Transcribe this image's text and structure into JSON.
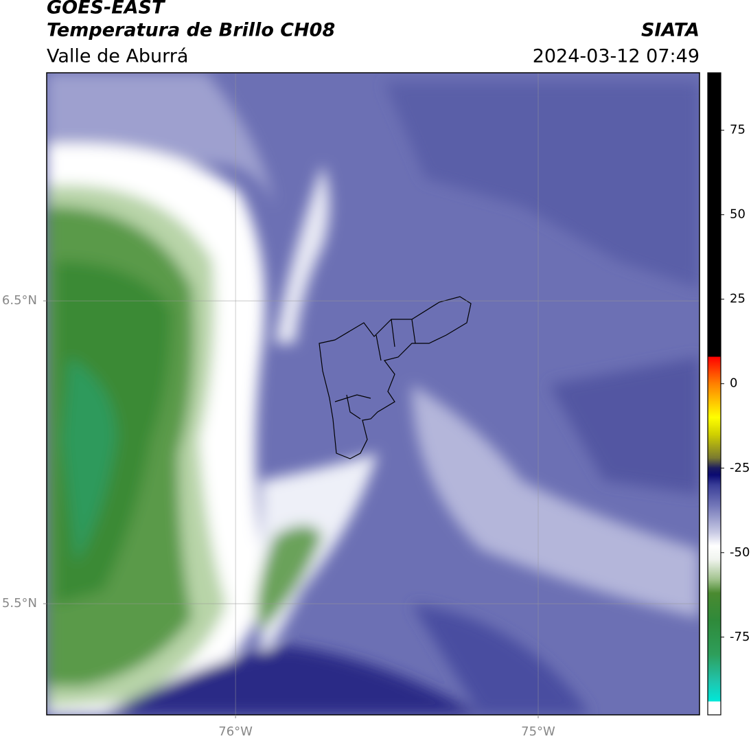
{
  "chart_data": {
    "type": "contour-map",
    "title": "GOES-EAST",
    "subtitle": "Temperatura de Brillo CH08",
    "region": "Valle de Aburrá",
    "source": "SIATA",
    "timestamp": "2024-03-12 07:49",
    "xlim": [
      -76.624,
      -74.467
    ],
    "ylim": [
      5.133,
      7.253
    ],
    "xticks": [
      {
        "value": -76,
        "label": "76°W"
      },
      {
        "value": -75,
        "label": "75°W"
      }
    ],
    "yticks": [
      {
        "value": 6.5,
        "label": "6.5°N"
      },
      {
        "value": 5.5,
        "label": "5.5°N"
      }
    ],
    "grid": true,
    "colorbar": {
      "lim": [
        -98,
        92
      ],
      "ticks": [
        75,
        50,
        25,
        0,
        -25,
        -50,
        -75
      ],
      "stops": [
        [
          -98,
          "#ffffff"
        ],
        [
          -94,
          "#ffffff"
        ],
        [
          -94,
          "#00e8d8"
        ],
        [
          -88,
          "#20c4ac"
        ],
        [
          -80,
          "#2e9e5a"
        ],
        [
          -70,
          "#2f8a3a"
        ],
        [
          -62,
          "#4a8a30"
        ],
        [
          -58,
          "#a0c28c"
        ],
        [
          -52,
          "#f0f4ee"
        ],
        [
          -48,
          "#ffffff"
        ],
        [
          -44,
          "#c8cae4"
        ],
        [
          -36,
          "#7276b8"
        ],
        [
          -30,
          "#3a3e98"
        ],
        [
          -27,
          "#0a0a72"
        ],
        [
          -25,
          "#1a1a60"
        ],
        [
          -22,
          "#7a7a30"
        ],
        [
          -15,
          "#d0d000"
        ],
        [
          -10,
          "#ffff00"
        ],
        [
          -5,
          "#ffc000"
        ],
        [
          0,
          "#ff8000"
        ],
        [
          5,
          "#ff3000"
        ],
        [
          8,
          "#ff0000"
        ],
        [
          8,
          "#000000"
        ],
        [
          92,
          "#000000"
        ]
      ]
    }
  }
}
